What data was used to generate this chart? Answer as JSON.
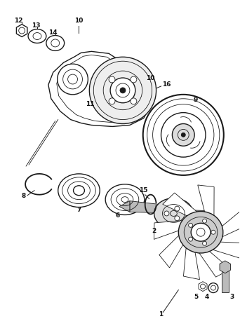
{
  "bg_color": "#ffffff",
  "line_color": "#1a1a1a",
  "label_color": "#111111",
  "fig_width": 3.42,
  "fig_height": 4.75,
  "dpi": 100
}
